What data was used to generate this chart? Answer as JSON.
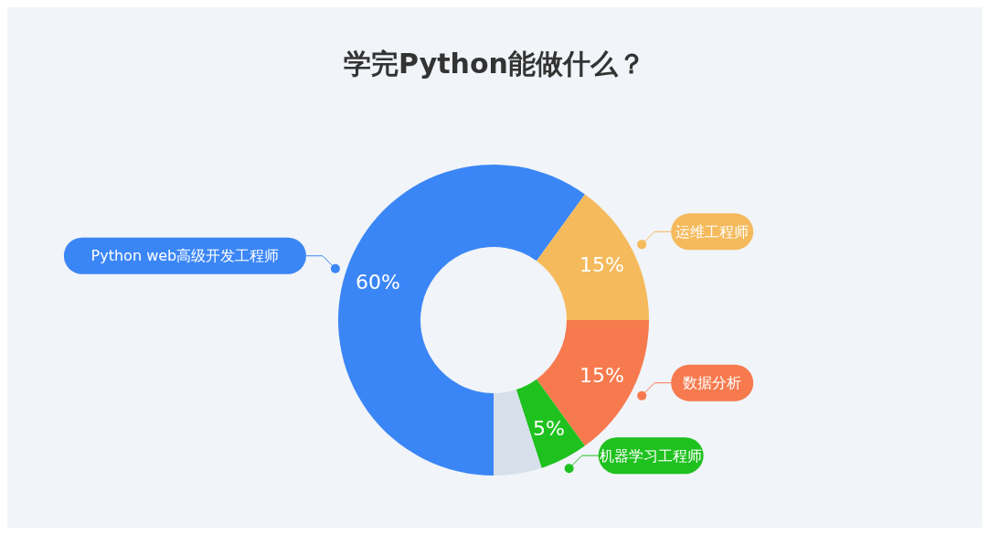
{
  "chart_data": {
    "type": "donut",
    "title": "学完Python能做什么？",
    "categories": [
      "Python web高级开发工程师",
      "运维工程师",
      "数据分析",
      "机器学习工程师",
      null
    ],
    "values": [
      60,
      15,
      15,
      5,
      5
    ],
    "colors": [
      "#3b86f6",
      "#f4ba5c",
      "#f67a4e",
      "#1fc11f",
      "#d6dfea"
    ],
    "value_labels": [
      "60%",
      "15%",
      "15%",
      "5%",
      null
    ]
  }
}
